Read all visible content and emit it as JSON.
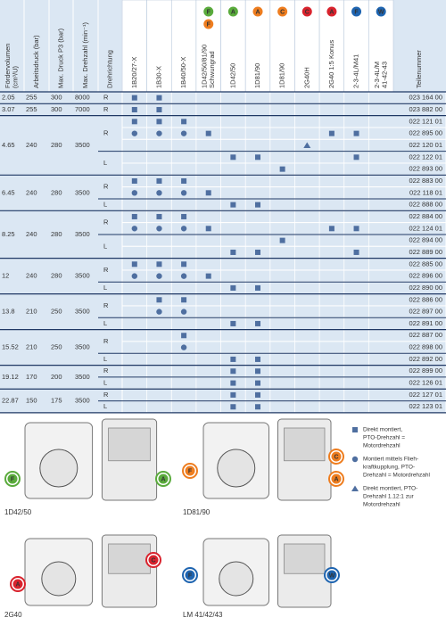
{
  "table": {
    "columns": [
      [
        "Fördervolumen",
        "(cm³/U)"
      ],
      [
        "Arbeitsdruck (bar)"
      ],
      [
        "Max. Druck P3 (bar)"
      ],
      [
        "Max. Drehzahl (min⁻¹)"
      ],
      [
        "Drehrichtung"
      ]
    ],
    "motor_columns": [
      {
        "header": [
          "1B20/27-X"
        ]
      },
      {
        "header": [
          "1B30-X"
        ]
      },
      {
        "header": [
          "1B40/50-X"
        ]
      },
      {
        "header": [
          "1D42/50/81/90",
          "Schwungrad"
        ],
        "badges": [
          {
            "letter": "F",
            "color": "#5aab3c"
          },
          {
            "letter": "F",
            "color": "#ee7d1f"
          }
        ]
      },
      {
        "header": [
          "1D42/50"
        ],
        "badges": [
          {
            "letter": "A",
            "color": "#5aab3c"
          }
        ]
      },
      {
        "header": [
          "1D81/90"
        ],
        "badges": [
          {
            "letter": "A",
            "color": "#ee7d1f"
          }
        ]
      },
      {
        "header": [
          "1D81/90"
        ],
        "badges": [
          {
            "letter": "C",
            "color": "#ee7d1f"
          }
        ]
      },
      {
        "header": [
          "2G40H"
        ],
        "badges": [
          {
            "letter": "C",
            "color": "#d9232d"
          }
        ]
      },
      {
        "header": [
          "2G40 1:5 Konus"
        ],
        "badges": [
          {
            "letter": "A",
            "color": "#d9232d"
          }
        ]
      },
      {
        "header": [
          "2-3-4L/M41"
        ],
        "badges": [
          {
            "letter": "F",
            "color": "#1e64b0"
          }
        ]
      },
      {
        "header": [
          "2-3-4L/M",
          "41-42-43"
        ],
        "badges": [
          {
            "letter": "W",
            "color": "#1e64b0"
          }
        ]
      }
    ],
    "part_header": "Teilenummer",
    "groups": [
      {
        "volume": "2.05",
        "pressure": "255",
        "max_pressure": "300",
        "max_speed": "8000",
        "directions": [
          {
            "dir": "R",
            "rows": [
              {
                "square": [
                  0,
                  1
                ],
                "part_number": "023 164 00"
              }
            ]
          }
        ]
      },
      {
        "volume": "3.07",
        "pressure": "255",
        "max_pressure": "300",
        "max_speed": "7000",
        "directions": [
          {
            "dir": "R",
            "rows": [
              {
                "square": [
                  0,
                  1
                ],
                "part_number": "023 882 00"
              }
            ]
          }
        ]
      },
      {
        "volume": "4.65",
        "pressure": "240",
        "max_pressure": "280",
        "max_speed": "3500",
        "directions": [
          {
            "dir": "R",
            "rows": [
              {
                "square": [
                  0,
                  1,
                  2
                ],
                "part_number": "022 121 01"
              },
              {
                "circle": [
                  0,
                  1,
                  2
                ],
                "square": [
                  3,
                  8,
                  9
                ],
                "part_number": "022 895 00"
              },
              {
                "triangle": [
                  7
                ],
                "part_number": "022 120 01"
              }
            ]
          },
          {
            "dir": "L",
            "rows": [
              {
                "square": [
                  4,
                  5,
                  9
                ],
                "part_number": "022 122 01"
              },
              {
                "square": [
                  6
                ],
                "part_number": "022 893 00"
              }
            ]
          }
        ]
      },
      {
        "volume": "6.45",
        "pressure": "240",
        "max_pressure": "280",
        "max_speed": "3500",
        "directions": [
          {
            "dir": "R",
            "rows": [
              {
                "square": [
                  0,
                  1,
                  2
                ],
                "part_number": "022 883 00"
              },
              {
                "circle": [
                  0,
                  1,
                  2
                ],
                "square": [
                  3
                ],
                "part_number": "022 118 01"
              }
            ]
          },
          {
            "dir": "L",
            "rows": [
              {
                "square": [
                  4,
                  5
                ],
                "part_number": "022 888 00"
              }
            ]
          }
        ]
      },
      {
        "volume": "8.25",
        "pressure": "240",
        "max_pressure": "280",
        "max_speed": "3500",
        "directions": [
          {
            "dir": "R",
            "rows": [
              {
                "square": [
                  0,
                  1,
                  2
                ],
                "part_number": "022 884 00"
              },
              {
                "circle": [
                  0,
                  1,
                  2
                ],
                "square": [
                  3,
                  8,
                  9
                ],
                "part_number": "022 124 01"
              }
            ]
          },
          {
            "dir": "L",
            "rows": [
              {
                "square": [
                  6
                ],
                "part_number": "022 894 00"
              },
              {
                "square": [
                  4,
                  5,
                  9
                ],
                "part_number": "022 889 00"
              }
            ]
          }
        ]
      },
      {
        "volume": "12",
        "pressure": "240",
        "max_pressure": "280",
        "max_speed": "3500",
        "directions": [
          {
            "dir": "R",
            "rows": [
              {
                "square": [
                  0,
                  1,
                  2
                ],
                "part_number": "022 885 00"
              },
              {
                "circle": [
                  0,
                  1,
                  2
                ],
                "square": [
                  3
                ],
                "part_number": "022 896 00"
              }
            ]
          },
          {
            "dir": "L",
            "rows": [
              {
                "square": [
                  4,
                  5
                ],
                "part_number": "022 890 00"
              }
            ]
          }
        ]
      },
      {
        "volume": "13.8",
        "pressure": "210",
        "max_pressure": "250",
        "max_speed": "3500",
        "directions": [
          {
            "dir": "R",
            "rows": [
              {
                "square": [
                  1,
                  2
                ],
                "part_number": "022 886 00"
              },
              {
                "circle": [
                  1,
                  2
                ],
                "part_number": "022 897 00"
              }
            ]
          },
          {
            "dir": "L",
            "rows": [
              {
                "square": [
                  4,
                  5
                ],
                "part_number": "022 891 00"
              }
            ]
          }
        ]
      },
      {
        "volume": "15.52",
        "pressure": "210",
        "max_pressure": "250",
        "max_speed": "3500",
        "directions": [
          {
            "dir": "R",
            "rows": [
              {
                "square": [
                  2
                ],
                "part_number": "022 887 00"
              },
              {
                "circle": [
                  2
                ],
                "part_number": "022 898 00"
              }
            ]
          },
          {
            "dir": "L",
            "rows": [
              {
                "square": [
                  4,
                  5
                ],
                "part_number": "022 892 00"
              }
            ]
          }
        ]
      },
      {
        "volume": "19.12",
        "pressure": "170",
        "max_pressure": "200",
        "max_speed": "3500",
        "directions": [
          {
            "dir": "R",
            "rows": [
              {
                "square": [
                  4,
                  5
                ],
                "part_number": "022 899 00"
              }
            ]
          },
          {
            "dir": "L",
            "rows": [
              {
                "square": [
                  4,
                  5
                ],
                "part_number": "022 126 01"
              }
            ]
          }
        ]
      },
      {
        "volume": "22.87",
        "pressure": "150",
        "max_pressure": "175",
        "max_speed": "3500",
        "directions": [
          {
            "dir": "R",
            "rows": [
              {
                "square": [
                  4,
                  5
                ],
                "part_number": "022 127 01"
              }
            ]
          },
          {
            "dir": "L",
            "rows": [
              {
                "square": [
                  4,
                  5
                ],
                "part_number": "022 123 01"
              }
            ]
          }
        ]
      }
    ]
  },
  "engines": [
    {
      "label": "1D42/50",
      "badges": [
        {
          "letter": "F",
          "color": "#5aab3c"
        },
        {
          "letter": "A",
          "color": "#5aab3c"
        }
      ]
    },
    {
      "label": "1D81/90",
      "badges": [
        {
          "letter": "F",
          "color": "#ee7d1f"
        },
        {
          "letter": "C",
          "color": "#ee7d1f"
        },
        {
          "letter": "A",
          "color": "#ee7d1f"
        }
      ]
    },
    {
      "label": "2G40",
      "badges": [
        {
          "letter": "A",
          "color": "#d9232d"
        },
        {
          "letter": "C",
          "color": "#d9232d"
        }
      ]
    },
    {
      "label": "LM 41/42/43",
      "badges": [
        {
          "letter": "F",
          "color": "#1e64b0"
        },
        {
          "letter": "W",
          "color": "#1e64b0"
        }
      ]
    }
  ],
  "legend": [
    {
      "shape": "square",
      "lines": [
        "Direkt montiert,",
        "PTO-Drehzahl =",
        "Motordrehzahl"
      ]
    },
    {
      "shape": "circle",
      "lines": [
        "Montiert mittels Flieh-",
        "kraftkupplung, PTO-",
        "Drehzahl = Motordrehzahl"
      ]
    },
    {
      "shape": "triangle",
      "lines": [
        "Direkt montiert, PTO-",
        "Drehzahl 1.12:1 zur",
        "Motordrehzahl"
      ]
    }
  ]
}
